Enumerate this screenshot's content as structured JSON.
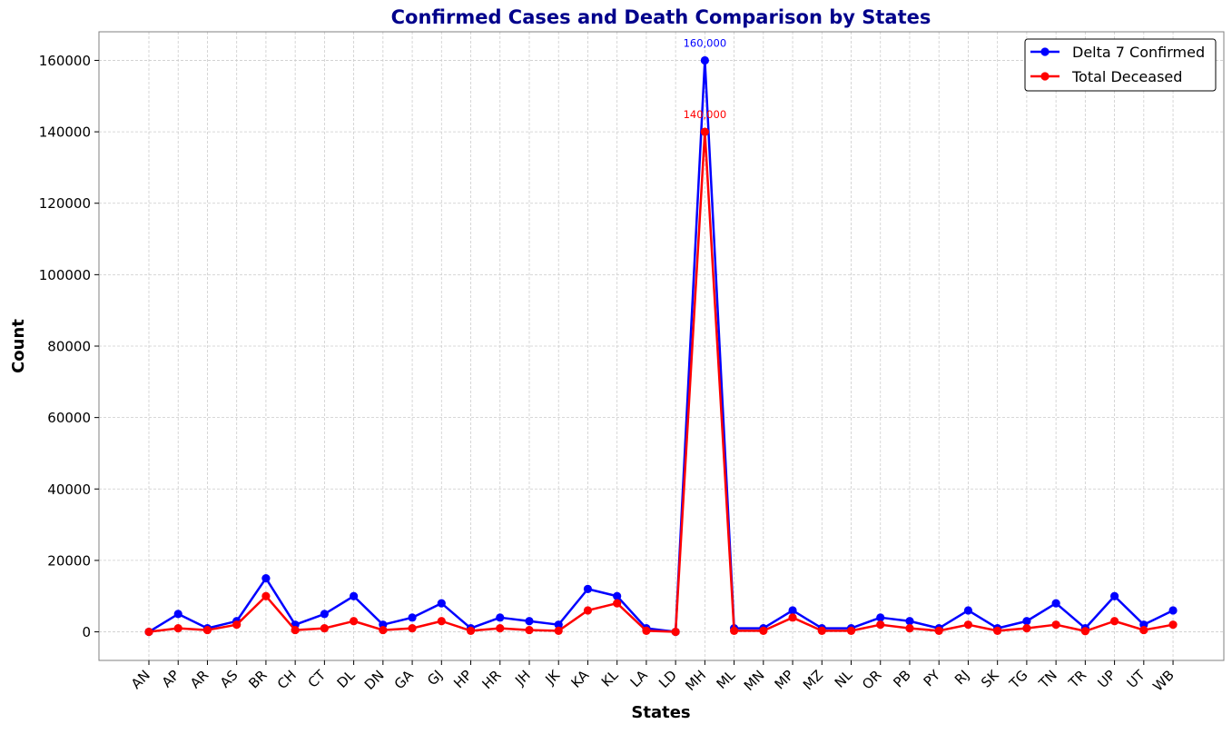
{
  "chart_data": {
    "type": "line",
    "title": "Confirmed Cases and Death Comparison by States",
    "xlabel": "States",
    "ylabel": "Count",
    "ylim": [
      -8000,
      168000
    ],
    "yticks": [
      0,
      20000,
      40000,
      60000,
      80000,
      100000,
      120000,
      140000,
      160000
    ],
    "grid": true,
    "legend_position": "top-right",
    "categories": [
      "AN",
      "AP",
      "AR",
      "AS",
      "BR",
      "CH",
      "CT",
      "DL",
      "DN",
      "GA",
      "GJ",
      "HP",
      "HR",
      "JH",
      "JK",
      "KA",
      "KL",
      "LA",
      "LD",
      "MH",
      "ML",
      "MN",
      "MP",
      "MZ",
      "NL",
      "OR",
      "PB",
      "PY",
      "RJ",
      "SK",
      "TG",
      "TN",
      "TR",
      "UP",
      "UT",
      "WB"
    ],
    "series": [
      {
        "name": "Delta 7 Confirmed",
        "color": "#0000ff",
        "values": [
          0,
          5000,
          1000,
          3000,
          15000,
          2000,
          5000,
          10000,
          2000,
          4000,
          8000,
          1000,
          4000,
          3000,
          2000,
          12000,
          10000,
          1000,
          0,
          160000,
          1000,
          1000,
          6000,
          1000,
          1000,
          4000,
          3000,
          1000,
          6000,
          1000,
          3000,
          8000,
          1000,
          10000,
          2000,
          6000
        ]
      },
      {
        "name": "Total Deceased",
        "color": "#ff0000",
        "values": [
          0,
          1000,
          500,
          2000,
          10000,
          500,
          1000,
          3000,
          500,
          1000,
          3000,
          300,
          1000,
          500,
          300,
          6000,
          8000,
          300,
          0,
          140000,
          300,
          300,
          4000,
          300,
          300,
          2000,
          1000,
          300,
          2000,
          300,
          1000,
          2000,
          200,
          3000,
          500,
          2000
        ]
      }
    ],
    "annotations": [
      {
        "category": "MH",
        "series": 0,
        "text": "160,000"
      },
      {
        "category": "MH",
        "series": 1,
        "text": "140,000"
      }
    ]
  }
}
